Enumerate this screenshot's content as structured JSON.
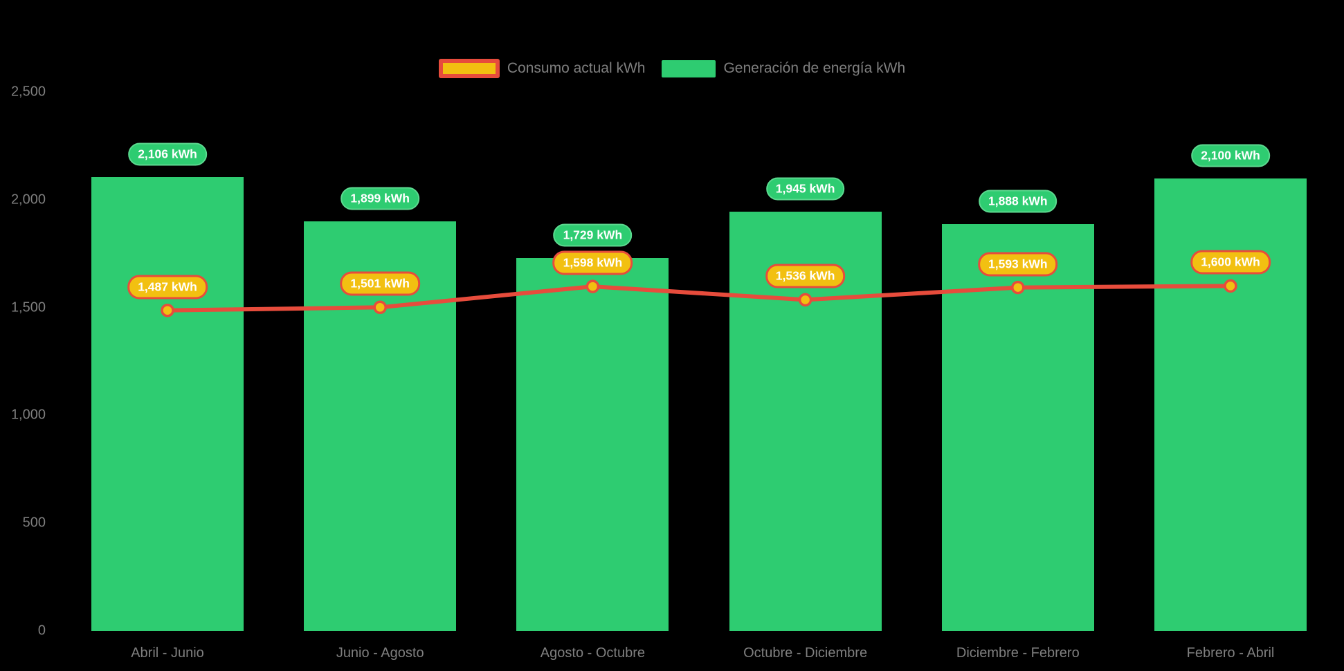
{
  "legend": {
    "items": [
      {
        "label": "Consumo actual kWh"
      },
      {
        "label": "Generación de energía kWh"
      }
    ]
  },
  "colors": {
    "background": "#000000",
    "bar_green": "#2ecc71",
    "bar_pill_border": "#5cd98f",
    "line_red": "#e74c3c",
    "point_yellow": "#f2c011",
    "axis_text_gray": "#7f7f7f",
    "pill_text_white": "#ffffff"
  },
  "chart_data": {
    "type": "bar",
    "subtype": "bar-with-line-overlay",
    "title": "",
    "xlabel": "",
    "ylabel": "",
    "categories": [
      "Abril - Junio",
      "Junio - Agosto",
      "Agosto - Octubre",
      "Octubre - Diciembre",
      "Diciembre - Febrero",
      "Febrero - Abril"
    ],
    "series": [
      {
        "name": "Generación de energía kWh",
        "type": "bar",
        "color": "#2ecc71",
        "values": [
          2106,
          1899,
          1729,
          1945,
          1888,
          2100
        ],
        "labels": [
          "2,106 kWh",
          "1,899 kWh",
          "1,729 kWh",
          "1,945 kWh",
          "1,888 kWh",
          "2,100 kWh"
        ]
      },
      {
        "name": "Consumo actual kWh",
        "type": "line",
        "color": "#e74c3c",
        "point_color": "#f2c011",
        "values": [
          1487,
          1501,
          1598,
          1536,
          1593,
          1600
        ],
        "labels": [
          "1,487 kWh",
          "1,501 kWh",
          "1,598 kWh",
          "1,536 kWh",
          "1,593 kWh",
          "1,600 kWh"
        ]
      }
    ],
    "y_axis": {
      "range": [
        0,
        2500
      ],
      "ticks": [
        2500,
        2000,
        1500,
        1000,
        500,
        0
      ],
      "tick_labels": [
        "2,500",
        "2,000",
        "1,500",
        "1,000",
        "500",
        "0"
      ]
    },
    "grid": false,
    "legend_position": "top-center"
  }
}
